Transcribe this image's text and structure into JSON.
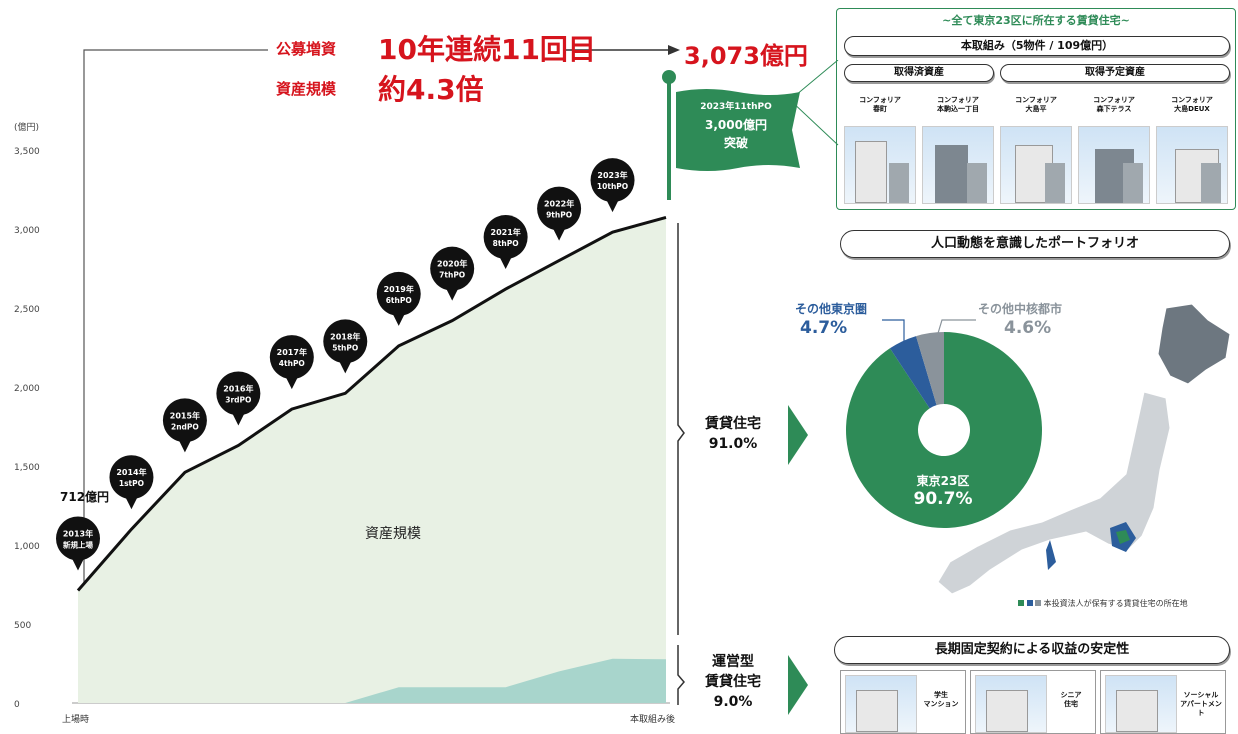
{
  "header": {
    "label1": "公募増資",
    "value1": "10年連続11回目",
    "label2": "資産規模",
    "value2": "約4.3倍",
    "final_value": "3,073億円"
  },
  "flag": {
    "line1": "2023年11thPO",
    "line2": "3,000億円",
    "line3": "突破"
  },
  "chart_data": {
    "type": "area",
    "ylabel": "(億円)",
    "ylim": [
      0,
      3500
    ],
    "yticks": [
      0,
      500,
      1000,
      1500,
      2000,
      2500,
      3000,
      3500
    ],
    "ytick_labels": [
      "0",
      "500",
      "1,000",
      "1,500",
      "2,000",
      "2,500",
      "3,000",
      "3,500"
    ],
    "x_start_label": "上場時",
    "x_end_label": "本取組み後",
    "area_label": "資産規模",
    "start_annotation": "712億円",
    "series": [
      {
        "name": "賃貸住宅",
        "values": [
          712,
          1100,
          1460,
          1630,
          1860,
          1960,
          2260,
          2420,
          2620,
          2800,
          2980,
          3073
        ]
      },
      {
        "name": "運営型賃貸住宅",
        "values": [
          0,
          0,
          0,
          0,
          0,
          0,
          100,
          100,
          100,
          200,
          280,
          277
        ]
      }
    ],
    "milestones": [
      {
        "l1": "2013年",
        "l2": "新規上場"
      },
      {
        "l1": "2014年",
        "l2": "1stPO"
      },
      {
        "l1": "2015年",
        "l2": "2ndPO"
      },
      {
        "l1": "2016年",
        "l2": "3rdPO"
      },
      {
        "l1": "2017年",
        "l2": "4thPO"
      },
      {
        "l1": "2018年",
        "l2": "5thPO"
      },
      {
        "l1": "2019年",
        "l2": "6thPO"
      },
      {
        "l1": "2020年",
        "l2": "7thPO"
      },
      {
        "l1": "2021年",
        "l2": "8thPO"
      },
      {
        "l1": "2022年",
        "l2": "9thPO"
      },
      {
        "l1": "2023年",
        "l2": "10thPO"
      }
    ],
    "shares": [
      {
        "l1": "賃貸住宅",
        "l2": "91.0%"
      },
      {
        "l1": "運営型",
        "l2": "賃貸住宅",
        "l3": "9.0%"
      }
    ]
  },
  "acquisition": {
    "banner": "~全て東京23区に所在する賃貸住宅~",
    "title": "本取組み（5物件 / 109億円）",
    "acquired": "取得済資産",
    "planned": "取得予定資産",
    "properties": [
      {
        "l1": "コンフォリア",
        "l2": "春町"
      },
      {
        "l1": "コンフォリア",
        "l2": "本駒込一丁目"
      },
      {
        "l1": "コンフォリア",
        "l2": "大島平"
      },
      {
        "l1": "コンフォリア",
        "l2": "森下テラス"
      },
      {
        "l1": "コンフォリア",
        "l2": "大島DEUX"
      }
    ]
  },
  "portfolio": {
    "title": "人口動態を意識したポートフォリオ",
    "pie": [
      {
        "name": "東京23区",
        "value": 90.7,
        "color": "#2e8b57"
      },
      {
        "name": "その他東京圏",
        "value": 4.7,
        "color": "#2c5d9c"
      },
      {
        "name": "その他中核都市",
        "value": 4.6,
        "color": "#8a939b"
      }
    ],
    "tokyo_label": "東京23区",
    "tokyo_value": "90.7%",
    "other_tokyo_label": "その他東京圏",
    "other_tokyo_value": "4.7%",
    "other_city_label": "その他中核都市",
    "other_city_value": "4.6%",
    "legend": "本投資法人が保有する賃貸住宅の所在地"
  },
  "stability": {
    "title": "長期固定契約による収益の安定性",
    "items": [
      {
        "l1": "学生",
        "l2": "マンション"
      },
      {
        "l1": "シニア",
        "l2": "住宅"
      },
      {
        "l1": "ソーシャル",
        "l2": "アパートメント"
      }
    ]
  }
}
